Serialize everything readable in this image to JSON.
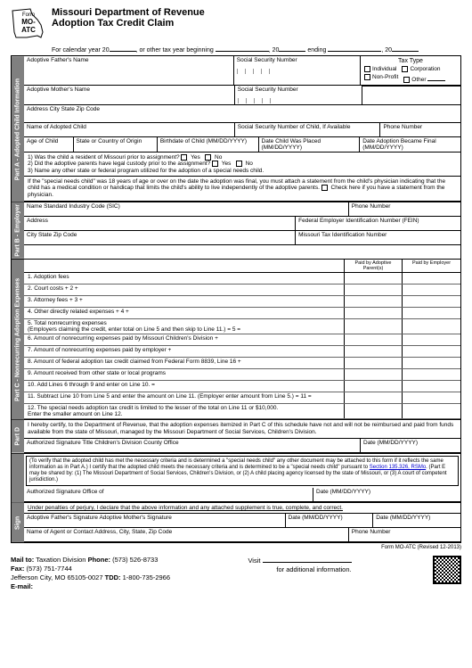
{
  "header": {
    "form_label": "Form",
    "form_code": "MO-ATC",
    "dept": "Missouri Department of Revenue",
    "title": "Adoption Tax Credit Claim",
    "calendar_prefix": "For calendar year 20",
    "calendar_mid": ", or other tax year beginning",
    "calendar_end1": ", 20",
    "calendar_end2": " ending",
    "calendar_end3": ", 20"
  },
  "partA": {
    "label": "Part A - Adopted Child Information",
    "father": "Adoptive Father's Name",
    "mother": "Adoptive Mother's Name",
    "ssn": "Social Security Number",
    "address": "Address City State Zip Code",
    "child_name": "Name of Adopted Child",
    "child_ssn": "Social Security Number of Child, If Available",
    "phone": "Phone Number",
    "age": "Age of Child",
    "origin": "State or Country of Origin",
    "birthdate": "Birthdate of Child (MM/DD/YYYY)",
    "placed": "Date Child Was Placed (MM/DD/YYYY)",
    "final": "Date Adoption Became Final (MM/DD/YYYY)",
    "q1": "1) Was the child a resident of Missouri prior to assignment?",
    "q2": "2) Did the adoptive parents have legal custody prior to the assignment?",
    "q3": "3) Name any other state or federal program utilized for the adoption of a special needs child.",
    "yes": "Yes",
    "no": "No",
    "note": "If the \"special needs child\" was 18 years of age or over on the date the adoption was final, you must attach a statement from the child's physician indicating that the child has a medical condition or handicap that limits the child's ability to live independently of the adoptive parents.",
    "note_cb": "Check here if you have a statement from the physician.",
    "tax_type": "Tax Type",
    "individual": "Individual",
    "corporation": "Corporation",
    "nonprofit": "Non-Profit",
    "other": "Other"
  },
  "partB": {
    "label": "Part B - Employer",
    "name_sic": "Name  Standard Industry Code (SIC)",
    "phone": "Phone Number",
    "address": "Address",
    "fein": "Federal Employer Identification Number (FEIN)",
    "city": "City State Zip Code",
    "motax": "Missouri Tax Identification Number"
  },
  "partC": {
    "label": "Part C - Nonrecurring Adoption Expenses",
    "col1": "Paid by Adoptive Parent(s)",
    "col2": "Paid by Employer",
    "lines": [
      "1. Adoption fees",
      "2. Court costs  + 2 +",
      "3. Attorney fees  + 3 +",
      "4. Other directly related expenses  + 4 +",
      "5. Total nonrecurring expenses\n(Employers claiming the credit, enter total on Line 5 and then skip to Line 11.)  = 5 =",
      "6. Amount of nonrecurring expenses paid by Missouri Children's Division  +",
      "7. Amount of nonrecurring expenses paid by employer  +",
      "8. Amount of federal adoption tax credit claimed from Federal Form 8839, Line 16  +",
      "9. Amount received from other state or local programs",
      "10. Add Lines 6 through 9 and enter on Line 10.  =",
      "11. Subtract Line 10 from Line 5 and enter the amount on Line 11.  (Employer enter amount from Line 5.)  = 11 =",
      "12. The special needs adoption tax credit is limited to the lesser of the total on Line 11 or $10,000.\n     Enter the smaller amount on Line 12."
    ]
  },
  "partD": {
    "label": "Part D",
    "cert": "I hereby certify, to the Department of Revenue, that the adoption expenses itemized in Part C of this schedule have not and will not be reimbursed and paid from funds available from the state of Missouri, managed by the Missouri Department of Social Services, Children's Division.",
    "sig_title": "Authorized Signature Title Children's Division County Office",
    "date": "Date (MM/DD/YYYY)"
  },
  "partE": {
    "verify": "(To verify that the adopted child has met the necessary criteria and is determined a \"special needs child\" any other document may be attached to this form if it reflects the same information as in Part A.) I certify that the adopted child meets the necessary criteria and is determined to be a \"special needs child\" pursuant to ",
    "link": "Section 135.326, RSMo",
    "verify2": ". (Part E may be shared by: (1) The Missouri Department of Social Services, Children's Division, or (2) A child placing agency licensed by the state of Missouri, or (3) A court of competent jurisdiction.)",
    "sig": "Authorized Signature  Office of",
    "date": "Date (MM/DD/YYYY)"
  },
  "sign": {
    "label": "Sign",
    "penalty": "Under penalties of perjury, I declare that the above information and any attached supplement is true, complete, and correct.",
    "father_sig": "Adoptive Father's Signature  Adoptive Mother's Signature",
    "date1": "Date (MM/DD/YYYY)",
    "date2": "Date (MM/DD/YYYY)",
    "agent": "Name of Agent or Contact Address, City, State, Zip Code",
    "phone": "Phone Number"
  },
  "footer": {
    "mail": "Mail to:",
    "mail_val": "Taxation Division",
    "phone": "Phone:",
    "phone_val": "(573) 526-8733",
    "fax": "Fax:",
    "fax_val": "(573) 751-7744",
    "addr": "Jefferson City, MO 65105-0027",
    "tdd": "TDD:",
    "tdd_val": "1-800-735-2966",
    "email": "E-mail:",
    "visit": "Visit",
    "info": "for additional information.",
    "rev": "Form MO-ATC (Revised 12-2013)"
  }
}
